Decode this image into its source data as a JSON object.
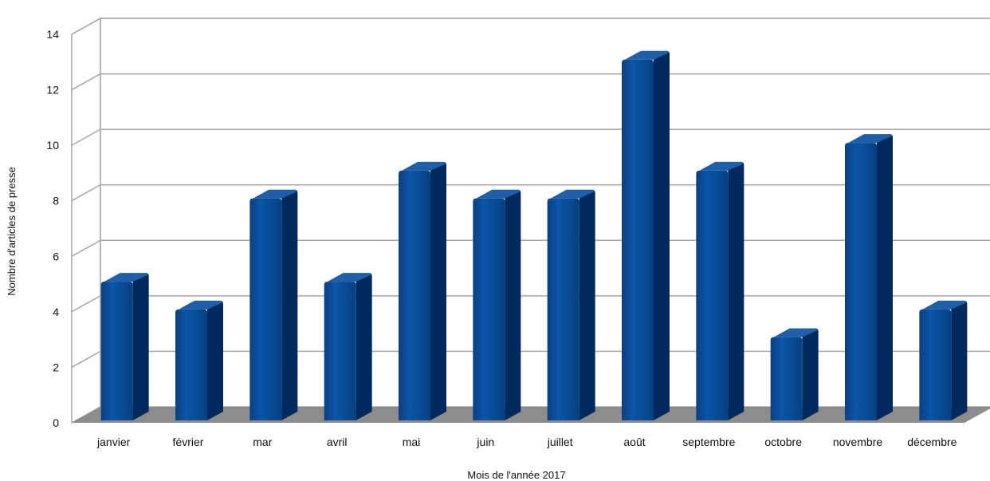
{
  "chart_data": {
    "type": "bar",
    "style": "3d",
    "xlabel": "Mois de l'année 2017",
    "ylabel": "Nombre d'articles de presse",
    "categories": [
      "janvier",
      "février",
      "mar",
      "avril",
      "mai",
      "juin",
      "juillet",
      "août",
      "septembre",
      "octobre",
      "novembre",
      "décembre"
    ],
    "series": [
      {
        "values": [
          5,
          4,
          8,
          5,
          9,
          8,
          8,
          13,
          9,
          3,
          10,
          4
        ]
      }
    ],
    "ylim": [
      0,
      14
    ],
    "yticks": [
      0,
      2,
      4,
      6,
      8,
      10,
      12,
      14
    ],
    "grid": true,
    "legend": "none",
    "colors": {
      "bar_front": "#004a8f",
      "bar_side": "#002a5c",
      "bar_top": "#1d5fa8",
      "floor": "#8c8c8c",
      "grid": "#a8a8a8",
      "walls": "#ffffff"
    }
  }
}
